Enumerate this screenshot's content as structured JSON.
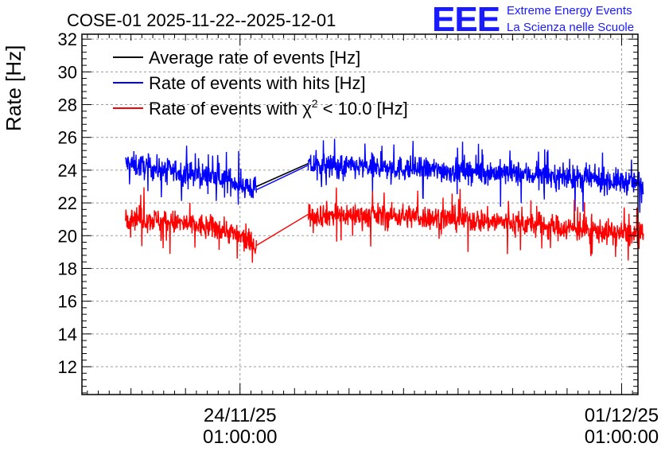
{
  "chart_data": {
    "type": "line",
    "title": "COSE-01 2025-11-22--2025-12-01",
    "ylabel": "Rate [Hz]",
    "xlabel": "",
    "ylim": [
      10.3,
      32.3
    ],
    "yticks": [
      12,
      14,
      16,
      18,
      20,
      22,
      24,
      26,
      28,
      30,
      32
    ],
    "ytick_labels": [
      "12",
      "14",
      "16",
      "18",
      "20",
      "22",
      "24",
      "26",
      "28",
      "30",
      "32"
    ],
    "xlim_days": [
      -2.9,
      7.3
    ],
    "xticks": [
      {
        "day": 0,
        "date": "24/11/25",
        "time": "01:00:00"
      },
      {
        "day": 7,
        "date": "01/12/25",
        "time": "01:00:00"
      }
    ],
    "grid": true,
    "legend_position": "top-left",
    "logo": {
      "mark": "EEE",
      "line1": "Extreme Energy Events",
      "line2": "La Scienza nelle Scuole"
    },
    "gap": {
      "start_day": 0.3,
      "end_day": 1.25
    },
    "series": [
      {
        "name": "Average rate of events [Hz]",
        "legend_label": "Average rate of events [Hz]",
        "color": "#000000",
        "trend": [
          [
            -2.1,
            24.5
          ],
          [
            -1.2,
            24.0
          ],
          [
            -0.3,
            23.6
          ],
          [
            0.3,
            23.0
          ],
          [
            1.25,
            24.4
          ],
          [
            3.0,
            24.2
          ],
          [
            5.0,
            23.9
          ],
          [
            7.4,
            23.3
          ]
        ],
        "noise": 0.0
      },
      {
        "name": "Rate of events with hits [Hz]",
        "legend_label": "Rate of events with hits [Hz]",
        "color": "#0000ff",
        "trend": [
          [
            -2.1,
            24.4
          ],
          [
            -1.2,
            23.9
          ],
          [
            -0.3,
            23.5
          ],
          [
            0.3,
            22.8
          ],
          [
            1.25,
            24.3
          ],
          [
            3.0,
            24.1
          ],
          [
            5.0,
            23.8
          ],
          [
            7.4,
            23.2
          ]
        ],
        "noise": 0.75
      },
      {
        "name": "Rate of events with χ² < 10.0 [Hz]",
        "legend_label_pre": "Rate of events with χ",
        "legend_label_sup": "2",
        "legend_label_post": " < 10.0 [Hz]",
        "color": "#ff0000",
        "trend": [
          [
            -2.1,
            21.2
          ],
          [
            -1.2,
            20.8
          ],
          [
            -0.3,
            20.4
          ],
          [
            0.3,
            19.4
          ],
          [
            1.25,
            21.3
          ],
          [
            3.0,
            21.2
          ],
          [
            5.0,
            20.8
          ],
          [
            7.4,
            20.0
          ]
        ],
        "noise": 0.75
      }
    ]
  }
}
